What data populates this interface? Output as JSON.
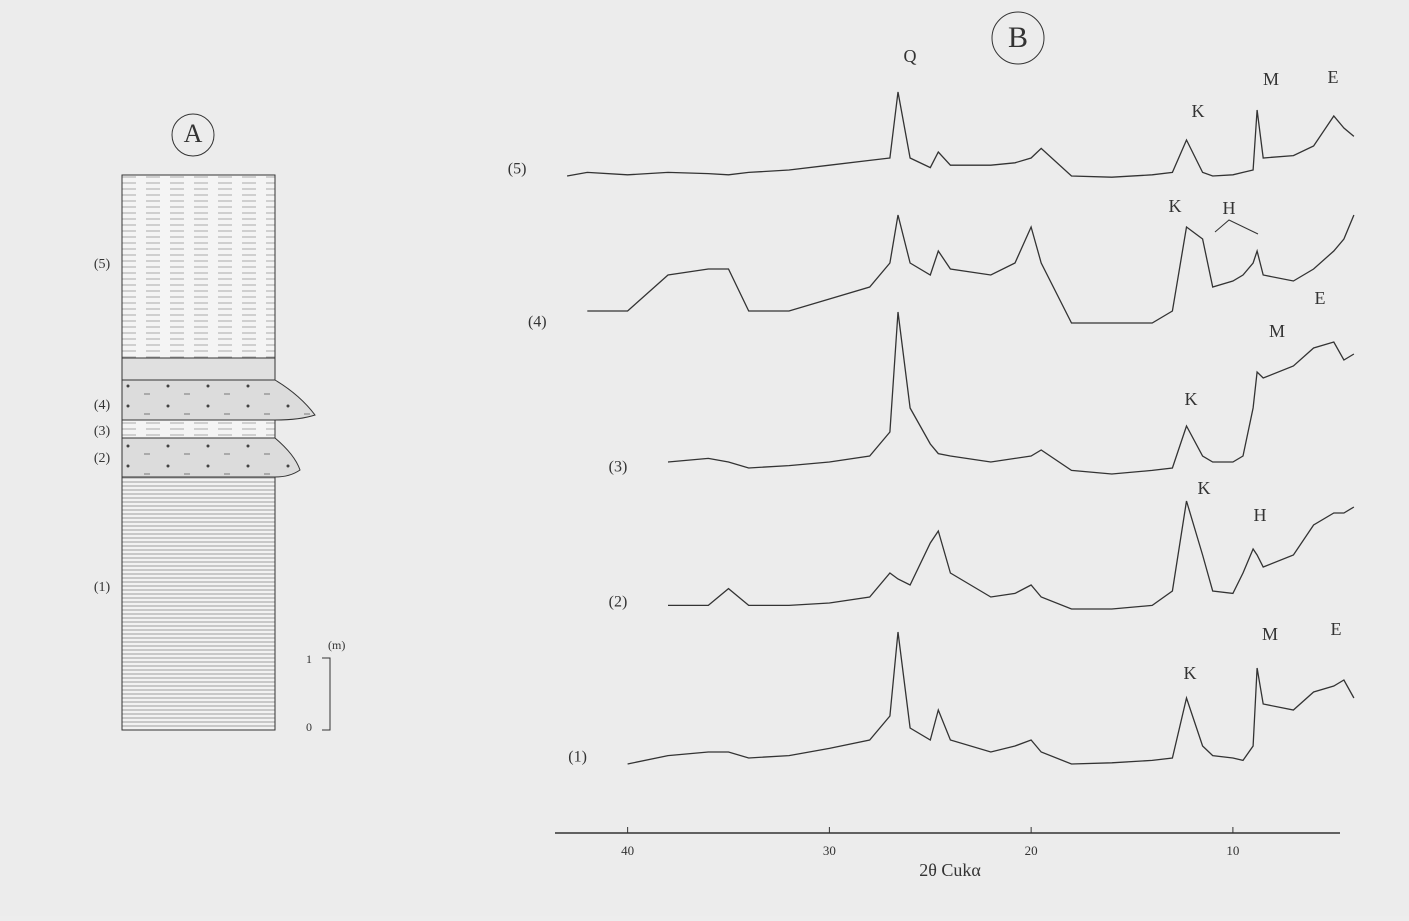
{
  "panel_a": {
    "label": "A",
    "layers": [
      "(5)",
      "(4)",
      "(3)",
      "(2)",
      "(1)"
    ],
    "scale_unit": "(m)",
    "scale_ticks": [
      1,
      0
    ]
  },
  "chart_data": {
    "type": "line",
    "label": "B",
    "xlabel": "2θ Cukα",
    "x": [
      43,
      42,
      40,
      38,
      36,
      35,
      34,
      32,
      30,
      28,
      27,
      26.6,
      26,
      25,
      24.6,
      24,
      22,
      20.8,
      20,
      19.5,
      18,
      16,
      14,
      13,
      12.3,
      11.5,
      11,
      10,
      9.5,
      9,
      8.8,
      8.5,
      7,
      6,
      5,
      4.5,
      4
    ],
    "xlim": [
      43.6,
      3.7
    ],
    "xticks": [
      40,
      30,
      20,
      10
    ],
    "series": [
      {
        "name": "(5)",
        "color": "#333333",
        "values": [
          5,
          8,
          6,
          8,
          7,
          6,
          8,
          10,
          14,
          18,
          20,
          75,
          20,
          12,
          25,
          14,
          14,
          16,
          20,
          28,
          5,
          4,
          6,
          8,
          35,
          8,
          5,
          6,
          8,
          10,
          60,
          20,
          22,
          30,
          55,
          45,
          38
        ]
      },
      {
        "name": "(4)",
        "color": "#333333",
        "values": [
          null,
          20,
          20,
          50,
          55,
          55,
          20,
          20,
          30,
          40,
          60,
          100,
          60,
          50,
          70,
          55,
          50,
          60,
          90,
          60,
          10,
          10,
          10,
          20,
          90,
          80,
          40,
          45,
          50,
          60,
          70,
          50,
          45,
          55,
          70,
          80,
          100
        ]
      },
      {
        "name": "(3)",
        "color": "#333333",
        "values": [
          null,
          null,
          null,
          15,
          18,
          15,
          10,
          12,
          15,
          20,
          40,
          140,
          60,
          30,
          22,
          20,
          15,
          18,
          20,
          25,
          8,
          5,
          8,
          10,
          45,
          20,
          15,
          15,
          20,
          60,
          90,
          85,
          95,
          110,
          115,
          100,
          105
        ]
      },
      {
        "name": "(2)",
        "color": "#333333",
        "values": [
          null,
          null,
          null,
          8,
          8,
          22,
          8,
          8,
          10,
          15,
          35,
          30,
          25,
          60,
          70,
          35,
          15,
          18,
          25,
          15,
          5,
          5,
          8,
          20,
          95,
          50,
          20,
          18,
          35,
          55,
          50,
          40,
          50,
          75,
          85,
          85,
          90
        ]
      },
      {
        "name": "(1)",
        "color": "#333333",
        "values": [
          null,
          null,
          5,
          12,
          15,
          15,
          10,
          12,
          18,
          25,
          45,
          115,
          35,
          25,
          50,
          25,
          15,
          20,
          25,
          15,
          5,
          6,
          8,
          10,
          60,
          20,
          12,
          10,
          8,
          20,
          85,
          55,
          50,
          65,
          70,
          75,
          60
        ]
      }
    ],
    "annotations": [
      "Q",
      "K",
      "M",
      "E",
      "K",
      "H",
      "M",
      "E",
      "K",
      "K",
      "H",
      "M",
      "E",
      "K"
    ]
  }
}
